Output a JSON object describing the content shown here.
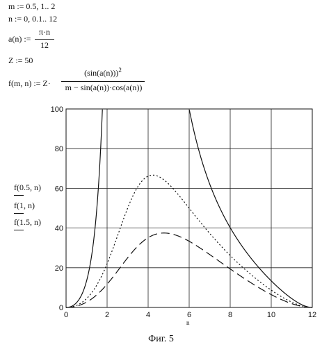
{
  "equations": {
    "m_def": "m := 0.5, 1.. 2",
    "n_def": "n := 0, 0.1.. 12",
    "a_lhs": "a(n) :=",
    "a_num": "π·n",
    "a_den": "12",
    "z_def": "Z := 50",
    "f_lhs": "f(m, n) := Z·",
    "f_num": "(sin(a(n)))",
    "f_exp": "2",
    "f_den": "m − sin(a(n))·cos(a(n))"
  },
  "legend": {
    "l1": "f(0.5, n)",
    "l2": "f(1, n)",
    "l3": "f(1.5, n)"
  },
  "axis": {
    "xlabel": "n"
  },
  "caption": "Фиг. 5",
  "chart_data": {
    "type": "line",
    "xlabel": "n",
    "xlim": [
      0,
      12
    ],
    "ylim": [
      0,
      100
    ],
    "xticks": [
      0,
      2,
      4,
      6,
      8,
      10,
      12
    ],
    "yticks": [
      0,
      20,
      40,
      60,
      80,
      100
    ],
    "grid": true,
    "Z": 50,
    "series": [
      {
        "name": "f(0.5, n)",
        "m": 0.5,
        "style": "solid"
      },
      {
        "name": "f(1, n)",
        "m": 1,
        "style": "dotted"
      },
      {
        "name": "f(1.5, n)",
        "m": 1.5,
        "style": "dashed"
      }
    ]
  }
}
